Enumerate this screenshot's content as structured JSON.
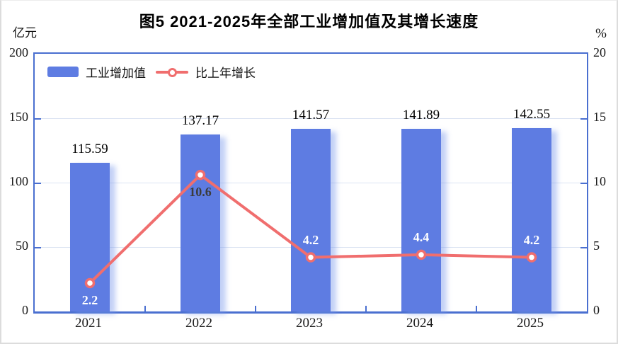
{
  "title": "图5  2021-2025年全部工业增加值及其增长速度",
  "left_axis": {
    "unit": "亿元",
    "ticks": [
      0,
      50,
      100,
      150,
      200
    ],
    "max": 200
  },
  "right_axis": {
    "unit": "%",
    "ticks": [
      0,
      5,
      10,
      15,
      20
    ],
    "max": 20
  },
  "legend": {
    "bar_label": "工业增加值",
    "line_label": "比上年增长"
  },
  "chart_data": {
    "type": "bar+line",
    "title": "图5 2021-2025年全部工业增加值及其增长速度",
    "categories": [
      "2021",
      "2022",
      "2023",
      "2024",
      "2025"
    ],
    "series": [
      {
        "name": "工业增加值",
        "type": "bar",
        "axis": "left",
        "unit": "亿元",
        "values": [
          115.59,
          137.17,
          141.57,
          141.89,
          142.55
        ],
        "labels": [
          "115.59",
          "137.17",
          "141.57",
          "141.89",
          "142.55"
        ]
      },
      {
        "name": "比上年增长",
        "type": "line",
        "axis": "right",
        "unit": "%",
        "values": [
          2.2,
          10.6,
          4.2,
          4.4,
          4.2
        ],
        "labels": [
          "2.2",
          "10.6",
          "4.2",
          "4.4",
          "4.2"
        ],
        "label_layout": [
          {
            "placement": "below",
            "color": "#ffffff"
          },
          {
            "placement": "below",
            "color": "#3c3c3c"
          },
          {
            "placement": "above",
            "color": "#ffffff"
          },
          {
            "placement": "above",
            "color": "#ffffff"
          },
          {
            "placement": "above",
            "color": "#ffffff"
          }
        ]
      }
    ],
    "left_ylim": [
      0,
      200
    ],
    "right_ylim": [
      0,
      20
    ],
    "grid": "horizontal",
    "legend_position": "top-left-inside"
  },
  "colors": {
    "bar": "#5e7ce2",
    "line": "#f06e6e",
    "marker_fill": "#ffffff",
    "grid": "#dbe3f2",
    "axis": "#4a6fd0",
    "text": "#1a1a1a"
  }
}
